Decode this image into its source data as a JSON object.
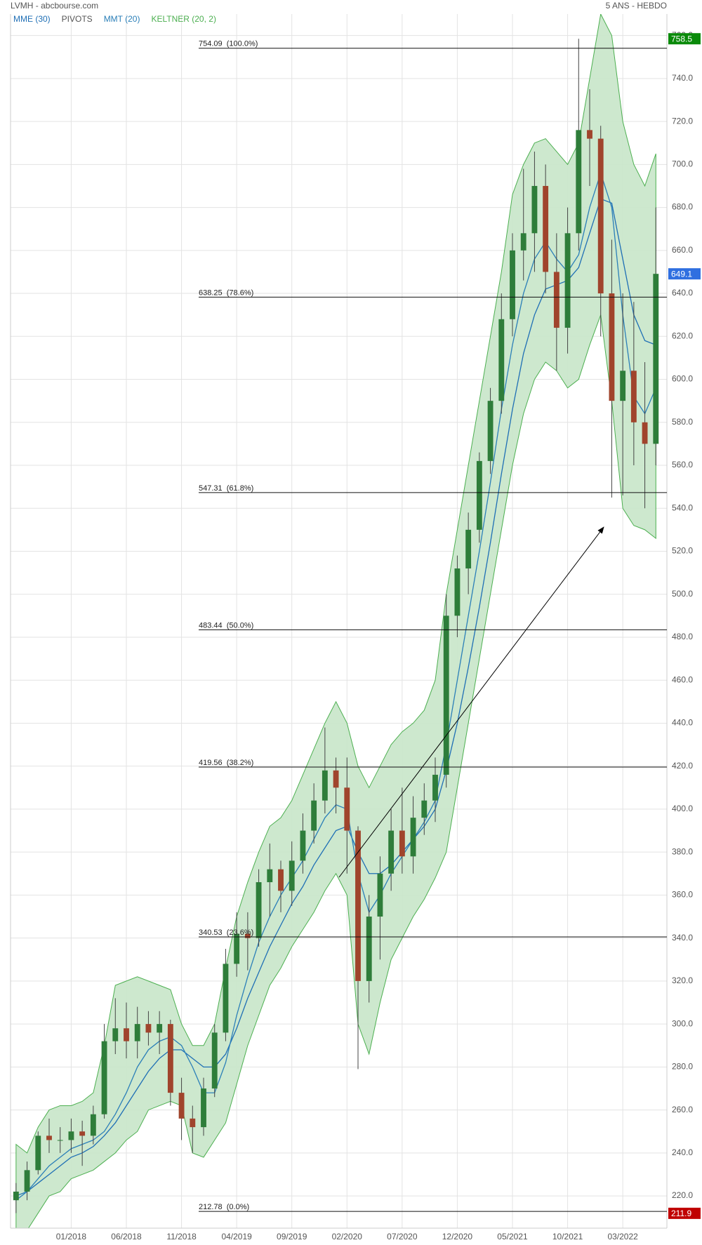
{
  "chart_data": {
    "type": "candlestick",
    "title": "LVMH - abcbourse.com",
    "subtitle": "5 ANS - HEBDO",
    "grid": true,
    "ylim": [
      205,
      770
    ],
    "yticks": [
      {
        "value": 220,
        "label": "220.0"
      },
      {
        "value": 240,
        "label": "240.0"
      },
      {
        "value": 260,
        "label": "260.0"
      },
      {
        "value": 280,
        "label": "280.0"
      },
      {
        "value": 300,
        "label": "300.0"
      },
      {
        "value": 320,
        "label": "320.0"
      },
      {
        "value": 340,
        "label": "340.0"
      },
      {
        "value": 360,
        "label": "360.0"
      },
      {
        "value": 380,
        "label": "380.0"
      },
      {
        "value": 400,
        "label": "400.0"
      },
      {
        "value": 420,
        "label": "420.0"
      },
      {
        "value": 440,
        "label": "440.0"
      },
      {
        "value": 460,
        "label": "460.0"
      },
      {
        "value": 480,
        "label": "480.0"
      },
      {
        "value": 500,
        "label": "500.0"
      },
      {
        "value": 520,
        "label": "520.0"
      },
      {
        "value": 540,
        "label": "540.0"
      },
      {
        "value": 560,
        "label": "560.0"
      },
      {
        "value": 580,
        "label": "580.0"
      },
      {
        "value": 600,
        "label": "600.0"
      },
      {
        "value": 620,
        "label": "620.0"
      },
      {
        "value": 640,
        "label": "640.0"
      },
      {
        "value": 660,
        "label": "660.0"
      },
      {
        "value": 680,
        "label": "680.0"
      },
      {
        "value": 700,
        "label": "700.0"
      },
      {
        "value": 720,
        "label": "720.0"
      },
      {
        "value": 740,
        "label": "740.0"
      },
      {
        "value": 760,
        "label": "760.0"
      }
    ],
    "xlim": [
      -0.5,
      59
    ],
    "xticks": [
      {
        "value": 5,
        "label": "01/2018"
      },
      {
        "value": 10,
        "label": "06/2018"
      },
      {
        "value": 15,
        "label": "11/2018"
      },
      {
        "value": 20,
        "label": "04/2019"
      },
      {
        "value": 25,
        "label": "09/2019"
      },
      {
        "value": 30,
        "label": "02/2020"
      },
      {
        "value": 35,
        "label": "07/2020"
      },
      {
        "value": 40,
        "label": "12/2020"
      },
      {
        "value": 45,
        "label": "05/2021"
      },
      {
        "value": 50,
        "label": "10/2021"
      },
      {
        "value": 55,
        "label": "03/2022"
      }
    ],
    "candles": {
      "up_color": "#2e7d3a",
      "down_color": "#a0442c",
      "open": [
        218,
        222,
        232,
        248,
        246,
        246,
        250,
        248,
        258,
        292,
        298,
        292,
        300,
        296,
        300,
        268,
        256,
        252,
        270,
        296,
        328,
        342,
        340,
        366,
        372,
        362,
        376,
        390,
        404,
        418,
        410,
        390,
        320,
        350,
        370,
        390,
        378,
        396,
        404,
        416,
        490,
        512,
        530,
        562,
        590,
        628,
        660,
        668,
        690,
        650,
        624,
        668,
        716,
        712,
        640,
        590,
        604,
        580,
        570
      ],
      "high": [
        226,
        236,
        250,
        256,
        252,
        256,
        255,
        262,
        300,
        312,
        310,
        308,
        306,
        306,
        302,
        275,
        262,
        275,
        300,
        335,
        352,
        352,
        372,
        384,
        376,
        385,
        398,
        412,
        438,
        424,
        424,
        392,
        360,
        378,
        400,
        410,
        406,
        412,
        424,
        500,
        518,
        538,
        566,
        596,
        640,
        668,
        698,
        706,
        700,
        668,
        680,
        758.5,
        735,
        718,
        665,
        640,
        636,
        608,
        680
      ],
      "low": [
        212,
        218,
        230,
        240,
        240,
        240,
        234,
        244,
        256,
        286,
        284,
        284,
        290,
        286,
        262,
        246,
        240,
        248,
        266,
        292,
        322,
        325,
        336,
        350,
        352,
        355,
        370,
        384,
        398,
        398,
        370,
        279,
        310,
        330,
        362,
        370,
        370,
        388,
        394,
        410,
        480,
        500,
        524,
        556,
        584,
        620,
        646,
        650,
        640,
        604,
        612,
        660,
        690,
        620,
        545,
        546,
        560,
        540,
        560
      ],
      "close": [
        222,
        232,
        248,
        246,
        246,
        250,
        248,
        258,
        292,
        298,
        292,
        300,
        296,
        300,
        268,
        256,
        252,
        270,
        296,
        328,
        342,
        340,
        366,
        372,
        362,
        376,
        390,
        404,
        418,
        410,
        390,
        320,
        350,
        370,
        390,
        378,
        396,
        404,
        416,
        490,
        512,
        530,
        562,
        590,
        628,
        660,
        668,
        690,
        650,
        624,
        668,
        716,
        712,
        640,
        590,
        604,
        580,
        570,
        649.1
      ]
    },
    "series": [
      {
        "name": "MME (30)",
        "color": "#1f6fb5",
        "values": [
          220,
          222,
          226,
          230,
          234,
          238,
          240,
          243,
          248,
          254,
          262,
          270,
          278,
          284,
          288,
          288,
          284,
          280,
          280,
          286,
          298,
          312,
          324,
          336,
          346,
          356,
          364,
          374,
          382,
          390,
          392,
          380,
          370,
          370,
          374,
          380,
          386,
          392,
          400,
          418,
          440,
          466,
          494,
          524,
          556,
          586,
          612,
          630,
          642,
          644,
          646,
          652,
          668,
          684,
          682,
          656,
          630,
          618,
          616
        ]
      },
      {
        "name": "MMT (20)",
        "color": "#2b7fb8",
        "values": [
          218,
          222,
          228,
          234,
          238,
          242,
          244,
          246,
          250,
          258,
          268,
          280,
          288,
          292,
          294,
          290,
          280,
          268,
          268,
          282,
          304,
          322,
          338,
          350,
          360,
          368,
          376,
          386,
          396,
          402,
          400,
          370,
          352,
          360,
          370,
          378,
          386,
          394,
          404,
          430,
          460,
          490,
          520,
          552,
          586,
          616,
          640,
          656,
          664,
          656,
          650,
          658,
          680,
          696,
          680,
          630,
          592,
          584,
          596
        ]
      }
    ],
    "pivots": {
      "name": "PIVOTS",
      "color": "#555555",
      "levels": [
        {
          "value": 754.09,
          "label": "754.09  (100.0%)"
        },
        {
          "value": 638.25,
          "label": "638.25  (78.6%)"
        },
        {
          "value": 547.31,
          "label": "547.31  (61.8%)"
        },
        {
          "value": 483.44,
          "label": "483.44  (50.0%)"
        },
        {
          "value": 419.56,
          "label": "419.56  (38.2%)"
        },
        {
          "value": 340.53,
          "label": "340.53  (23.6%)"
        },
        {
          "value": 212.78,
          "label": "212.78  (0.0%)"
        }
      ]
    },
    "keltner": {
      "name": "KELTNER (20, 2)",
      "color": "#4caf50",
      "fill": "#c8e6c9",
      "upper": [
        244,
        240,
        252,
        260,
        262,
        262,
        264,
        268,
        290,
        318,
        320,
        322,
        320,
        318,
        316,
        300,
        290,
        290,
        300,
        326,
        350,
        366,
        380,
        392,
        396,
        404,
        416,
        428,
        440,
        450,
        440,
        420,
        410,
        420,
        430,
        436,
        440,
        446,
        460,
        500,
        530,
        560,
        590,
        620,
        650,
        686,
        700,
        710,
        712,
        706,
        700,
        710,
        740,
        770,
        760,
        720,
        700,
        690,
        705
      ],
      "lower": [
        198,
        204,
        212,
        220,
        222,
        228,
        230,
        232,
        236,
        240,
        246,
        250,
        260,
        262,
        264,
        262,
        240,
        238,
        246,
        254,
        272,
        290,
        304,
        318,
        326,
        336,
        344,
        352,
        362,
        370,
        360,
        300,
        286,
        310,
        330,
        340,
        350,
        358,
        368,
        380,
        410,
        440,
        470,
        500,
        530,
        560,
        584,
        600,
        608,
        604,
        596,
        600,
        616,
        630,
        590,
        540,
        532,
        530,
        526
      ]
    },
    "price_tags": [
      {
        "value": 758.5,
        "color": "#0a8a0a"
      },
      {
        "value": 649.1,
        "color": "#2f6fe0"
      },
      {
        "value": 211.9,
        "color": "#c00000"
      }
    ]
  }
}
